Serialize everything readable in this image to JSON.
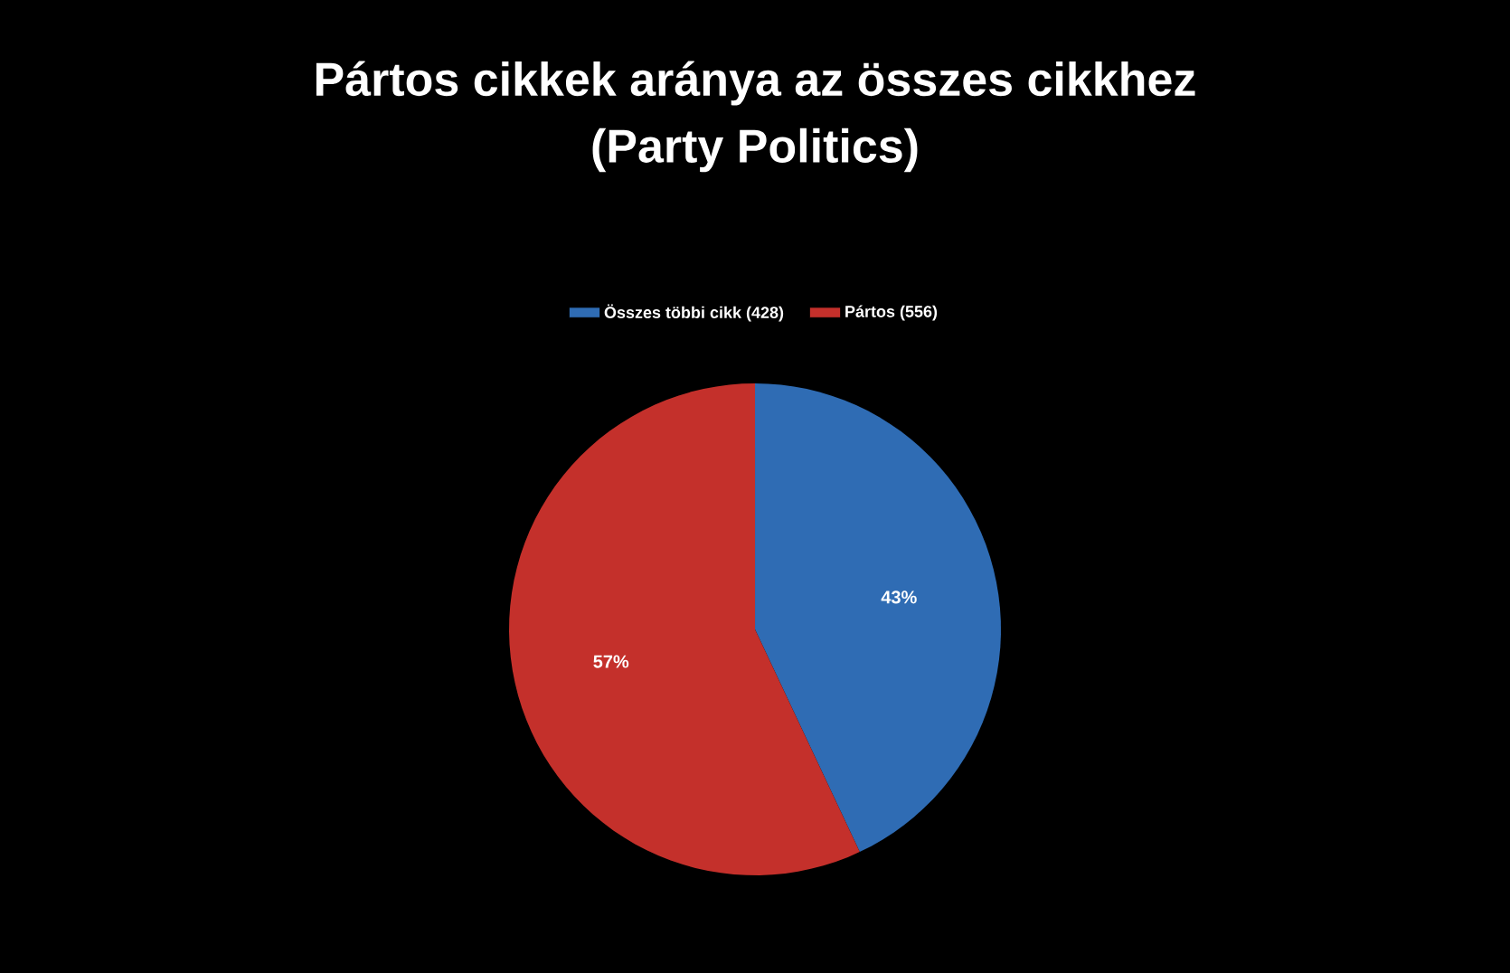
{
  "chart_data": {
    "type": "pie",
    "title": "Pártos cikkek aránya az összes cikkhez",
    "subtitle": "(Party Politics)",
    "categories": [
      "Összes többi cikk (428)",
      "Pártos (556)"
    ],
    "values": [
      43,
      57
    ],
    "colors": [
      "#2f6cb4",
      "#c4302b"
    ],
    "value_labels": [
      "43%",
      "57%"
    ],
    "legend": "top"
  }
}
